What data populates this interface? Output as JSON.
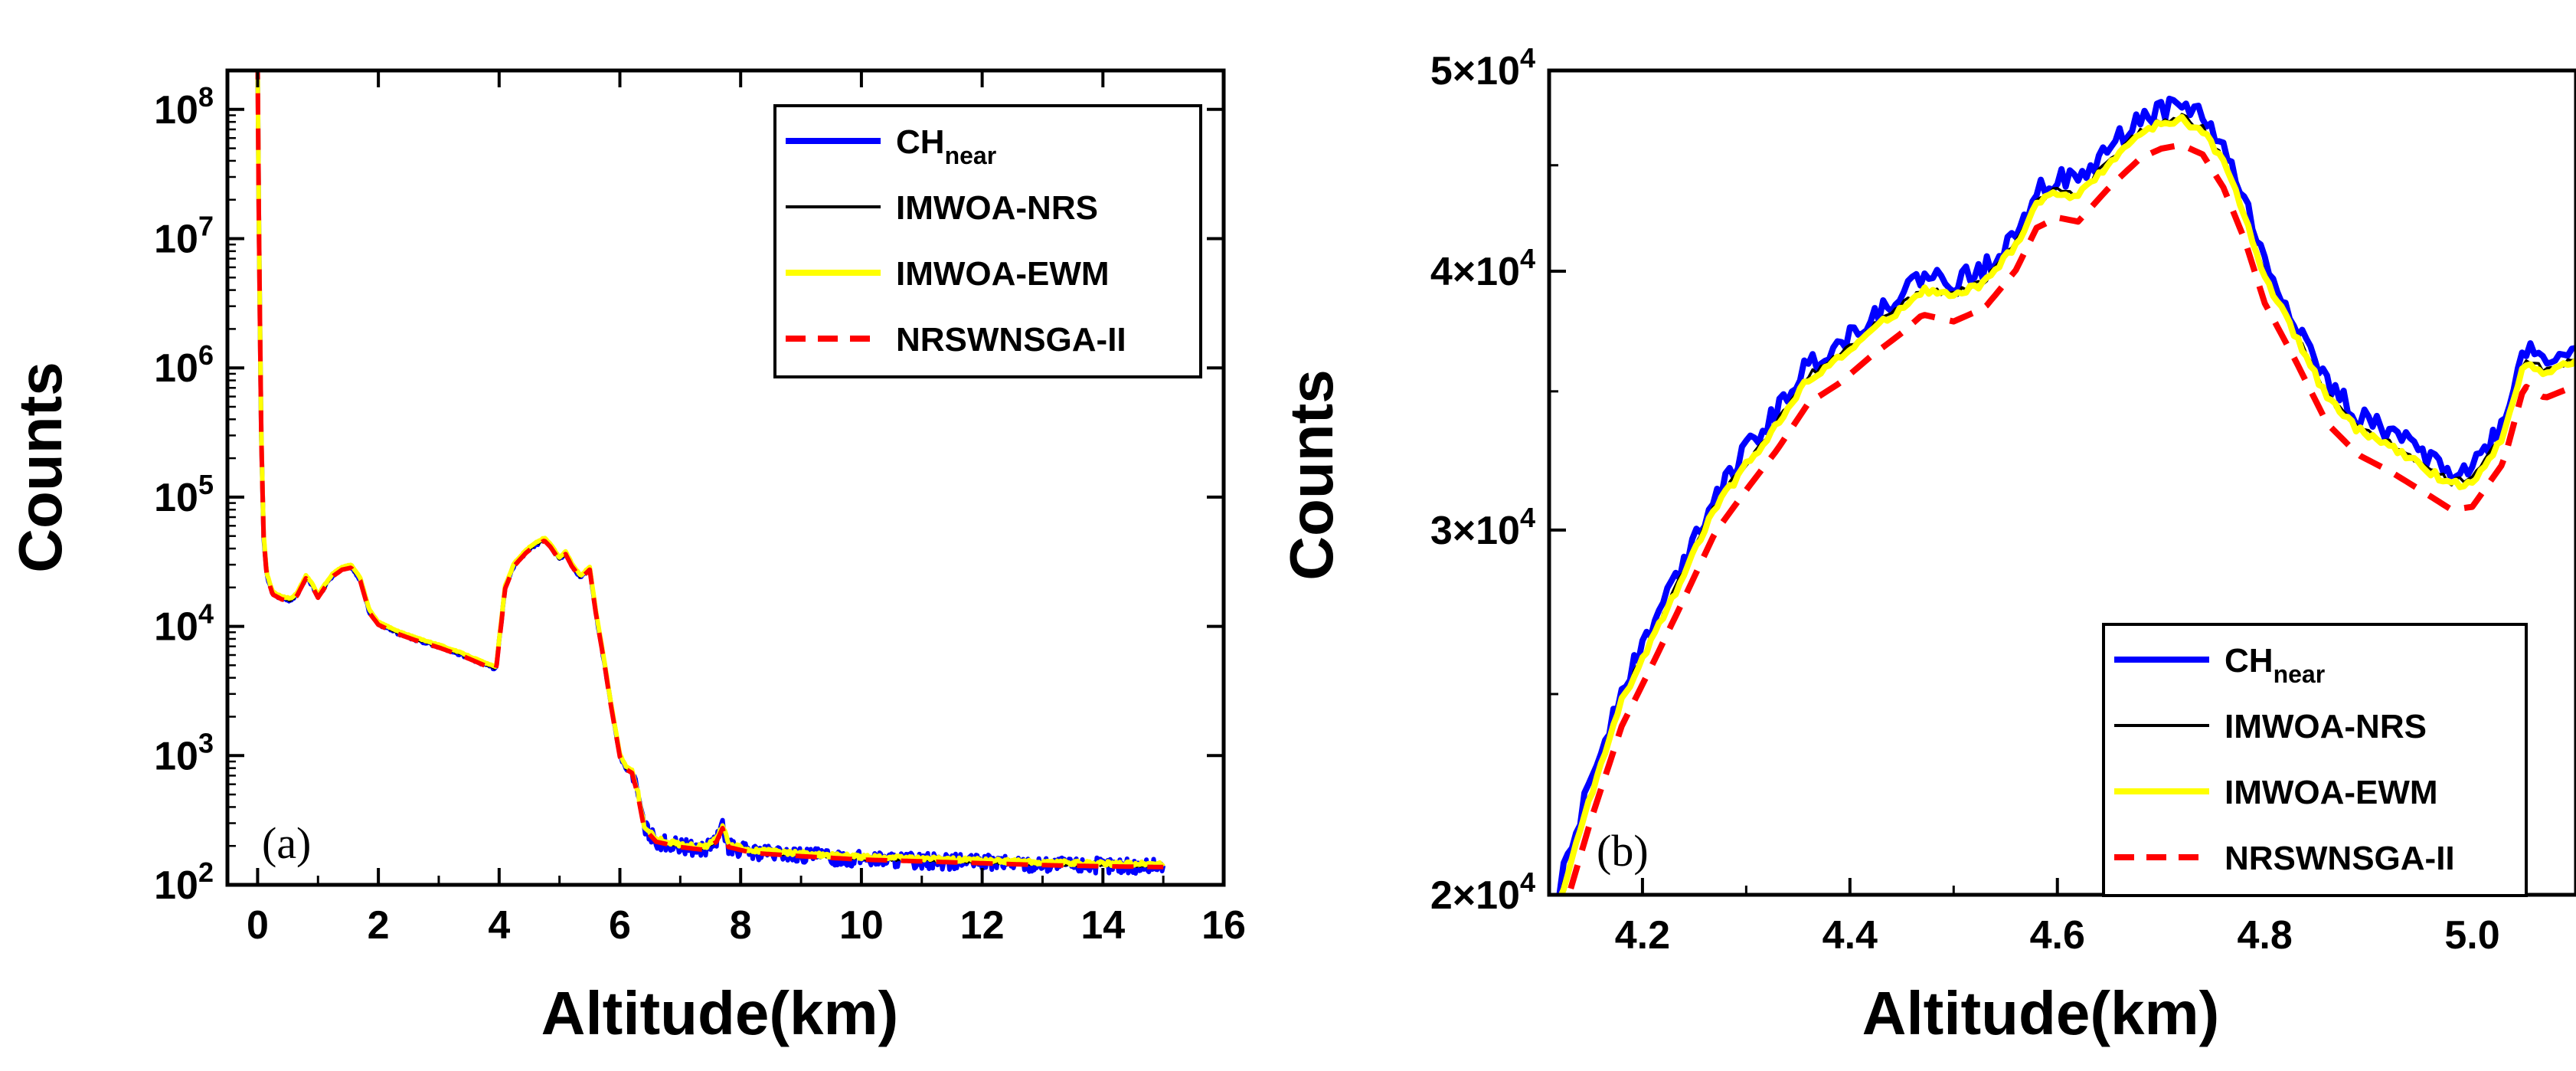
{
  "chart_data": [
    {
      "type": "line",
      "panel_label": "(a)",
      "xlabel": "Altitude(km)",
      "ylabel": "Counts",
      "xlim": [
        -0.5,
        16
      ],
      "ylim": [
        100,
        200000000
      ],
      "yscale": "log",
      "x_ticks": [
        0,
        2,
        4,
        6,
        8,
        10,
        12,
        14,
        16
      ],
      "x_tick_labels": [
        "0",
        "2",
        "4",
        "6",
        "8",
        "10",
        "12",
        "14",
        "16"
      ],
      "y_ticks": [
        {
          "value": 100,
          "base": "10",
          "exp": "2"
        },
        {
          "value": 1000,
          "base": "10",
          "exp": "3"
        },
        {
          "value": 10000,
          "base": "10",
          "exp": "4"
        },
        {
          "value": 100000,
          "base": "10",
          "exp": "5"
        },
        {
          "value": 1000000,
          "base": "10",
          "exp": "6"
        },
        {
          "value": 10000000,
          "base": "10",
          "exp": "7"
        },
        {
          "value": 100000000,
          "base": "10",
          "exp": "8"
        }
      ],
      "legend_position": "top-right",
      "legend": [
        {
          "label": "CH",
          "sub": "near",
          "color": "#0000FF",
          "dash": false
        },
        {
          "label": "IMWOA-NRS",
          "sub": "",
          "color": "#000000",
          "dash": false
        },
        {
          "label": "IMWOA-EWM",
          "sub": "",
          "color": "#FFFF00",
          "dash": false
        },
        {
          "label": "NRSWNSGA-II",
          "sub": "",
          "color": "#FF0000",
          "dash": true
        }
      ],
      "profile": [
        [
          0.0,
          150000000
        ],
        [
          0.03,
          5000000
        ],
        [
          0.06,
          300000
        ],
        [
          0.1,
          50000
        ],
        [
          0.15,
          25000
        ],
        [
          0.25,
          18000
        ],
        [
          0.4,
          16500
        ],
        [
          0.55,
          16000
        ],
        [
          0.65,
          17500
        ],
        [
          0.8,
          24000
        ],
        [
          0.9,
          21000
        ],
        [
          1.0,
          17000
        ],
        [
          1.1,
          20000
        ],
        [
          1.25,
          25000
        ],
        [
          1.4,
          28000
        ],
        [
          1.55,
          29000
        ],
        [
          1.7,
          23000
        ],
        [
          1.85,
          13000
        ],
        [
          2.0,
          10500
        ],
        [
          2.3,
          9000
        ],
        [
          2.6,
          8000
        ],
        [
          3.0,
          7000
        ],
        [
          3.4,
          6000
        ],
        [
          3.8,
          5000
        ],
        [
          3.95,
          4700
        ],
        [
          4.1,
          20000
        ],
        [
          4.25,
          30000
        ],
        [
          4.45,
          38000
        ],
        [
          4.6,
          43000
        ],
        [
          4.75,
          47000
        ],
        [
          4.85,
          42000
        ],
        [
          5.0,
          33000
        ],
        [
          5.1,
          37000
        ],
        [
          5.2,
          30000
        ],
        [
          5.35,
          24000
        ],
        [
          5.5,
          28000
        ],
        [
          5.6,
          13000
        ],
        [
          5.75,
          5000
        ],
        [
          5.85,
          2500
        ],
        [
          6.0,
          1000
        ],
        [
          6.1,
          800
        ],
        [
          6.2,
          750
        ],
        [
          6.3,
          500
        ],
        [
          6.4,
          280
        ],
        [
          6.6,
          220
        ],
        [
          7.0,
          200
        ],
        [
          7.4,
          190
        ],
        [
          7.6,
          220
        ],
        [
          7.7,
          280
        ],
        [
          7.8,
          200
        ],
        [
          8.2,
          180
        ],
        [
          9.0,
          170
        ],
        [
          10.0,
          160
        ],
        [
          11.0,
          155
        ],
        [
          12.0,
          150
        ],
        [
          13.0,
          145
        ],
        [
          14.0,
          142
        ],
        [
          15.0,
          140
        ]
      ]
    },
    {
      "type": "line",
      "panel_label": "(b)",
      "xlabel": "Altitude(km)",
      "ylabel": "Counts",
      "xlim": [
        4.11,
        5.1
      ],
      "ylim": [
        20000,
        50000
      ],
      "yscale": "log",
      "x_ticks": [
        4.2,
        4.4,
        4.6,
        4.8,
        5.0
      ],
      "x_tick_labels": [
        "4.2",
        "4.4",
        "4.6",
        "4.8",
        "5.0"
      ],
      "y_ticks": [
        {
          "value": 20000,
          "base": "2×10",
          "exp": "4"
        },
        {
          "value": 30000,
          "base": "3×10",
          "exp": "4"
        },
        {
          "value": 40000,
          "base": "4×10",
          "exp": "4"
        },
        {
          "value": 50000,
          "base": "5×10",
          "exp": "4"
        }
      ],
      "legend_position": "bottom-right",
      "legend": [
        {
          "label": "CH",
          "sub": "near",
          "color": "#0000FF",
          "dash": false
        },
        {
          "label": "IMWOA-NRS",
          "sub": "",
          "color": "#000000",
          "dash": false
        },
        {
          "label": "IMWOA-EWM",
          "sub": "",
          "color": "#FFFF00",
          "dash": false
        },
        {
          "label": "NRSWNSGA-II",
          "sub": "",
          "color": "#FF0000",
          "dash": true
        }
      ],
      "profile": [
        [
          4.12,
          20000
        ],
        [
          4.15,
          22500
        ],
        [
          4.18,
          25000
        ],
        [
          4.21,
          26800
        ],
        [
          4.24,
          28800
        ],
        [
          4.27,
          31000
        ],
        [
          4.3,
          32500
        ],
        [
          4.33,
          34000
        ],
        [
          4.36,
          35800
        ],
        [
          4.39,
          36600
        ],
        [
          4.42,
          37700
        ],
        [
          4.45,
          38700
        ],
        [
          4.47,
          39500
        ],
        [
          4.5,
          39200
        ],
        [
          4.53,
          39800
        ],
        [
          4.56,
          41500
        ],
        [
          4.58,
          43500
        ],
        [
          4.6,
          44000
        ],
        [
          4.62,
          43800
        ],
        [
          4.65,
          45500
        ],
        [
          4.68,
          47000
        ],
        [
          4.7,
          47500
        ],
        [
          4.72,
          47700
        ],
        [
          4.74,
          47200
        ],
        [
          4.76,
          45500
        ],
        [
          4.78,
          43000
        ],
        [
          4.8,
          40000
        ],
        [
          4.83,
          37500
        ],
        [
          4.86,
          35000
        ],
        [
          4.89,
          33800
        ],
        [
          4.92,
          33200
        ],
        [
          4.95,
          32500
        ],
        [
          4.98,
          31800
        ],
        [
          5.0,
          31900
        ],
        [
          5.03,
          33500
        ],
        [
          5.05,
          36500
        ],
        [
          5.07,
          36000
        ],
        [
          5.1,
          36500
        ]
      ]
    }
  ]
}
